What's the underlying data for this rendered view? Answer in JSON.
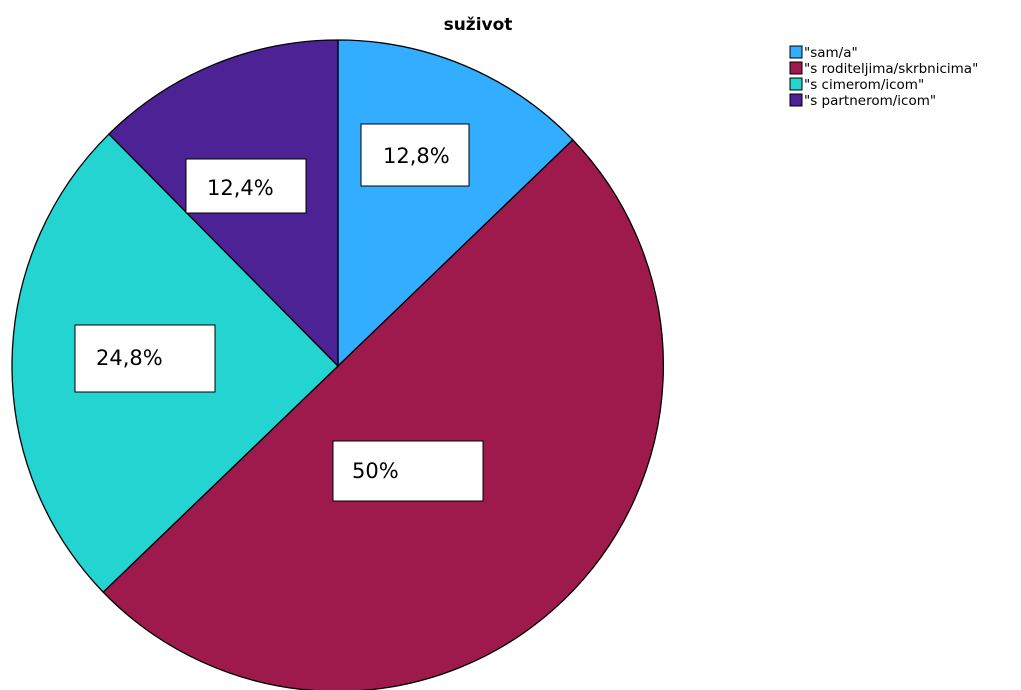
{
  "chart_data": {
    "type": "pie",
    "title": "suživot",
    "legend_position": "top-right",
    "slices": [
      {
        "label": "\"sam/a\"",
        "value": 12.8,
        "data_label": "12,8%",
        "color": "#33adff"
      },
      {
        "label": "\"s roditeljima/skrbnicima\"",
        "value": 50,
        "data_label": "50%",
        "color": "#9e1a4c"
      },
      {
        "label": "\"s cimerom/icom\"",
        "value": 24.8,
        "data_label": "24,8%",
        "color": "#23d4d1"
      },
      {
        "label": "\"s partnerom/icom\"",
        "value": 12.4,
        "data_label": "12,4%",
        "color": "#4d2294"
      }
    ]
  }
}
